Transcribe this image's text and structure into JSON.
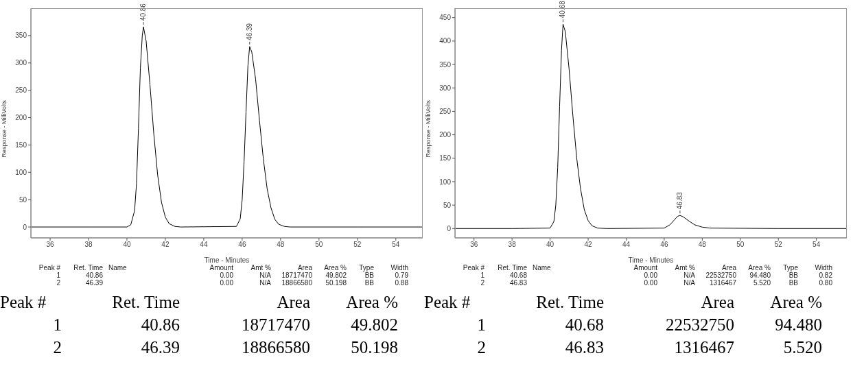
{
  "chart_data": [
    {
      "type": "line",
      "xlabel": "Time - Minutes",
      "ylabel": "Response - MilliVolts",
      "xlim": [
        35,
        55.4
      ],
      "ylim": [
        -20,
        400
      ],
      "xticks": [
        36,
        38,
        40,
        42,
        44,
        46,
        48,
        50,
        52,
        54
      ],
      "yticks": [
        0,
        50,
        100,
        150,
        200,
        250,
        300,
        350
      ],
      "grid": false,
      "marker": "none",
      "line_style": "solid",
      "series": [
        {
          "color": "#000000",
          "x": [
            35,
            38,
            40,
            40.2,
            40.4,
            40.5,
            40.6,
            40.7,
            40.8,
            40.86,
            41.0,
            41.2,
            41.4,
            41.6,
            41.8,
            42.0,
            42.2,
            42.5,
            42.8,
            45.7,
            45.9,
            46.0,
            46.1,
            46.2,
            46.3,
            46.39,
            46.5,
            46.7,
            46.9,
            47.1,
            47.3,
            47.5,
            47.7,
            47.9,
            48.2,
            48.5,
            52,
            55.4
          ],
          "values": [
            0,
            0,
            0,
            4,
            30,
            80,
            180,
            290,
            350,
            366,
            340,
            260,
            170,
            95,
            45,
            18,
            6,
            1,
            0,
            1,
            15,
            50,
            120,
            210,
            295,
            330,
            320,
            270,
            195,
            125,
            70,
            35,
            14,
            5,
            1,
            0,
            0,
            0
          ]
        }
      ],
      "annotations": [
        {
          "text": "40.86",
          "x": 40.86,
          "y": 366
        },
        {
          "text": "46.39",
          "x": 46.39,
          "y": 330
        },
        "Peak #\tRet. Time\tName\tAmount\tAmt %\tArea\tArea %\tType\tWidth",
        "1\t40.86\t\t0.00\tN/A\t18717470\t49.802\tBB\t0.79",
        "2\t46.39\t\t0.00\tN/A\t18866580\t50.198\tBB\t0.88",
        "Peak #\tRet. Time\tArea\tArea %",
        "1\t40.86\t18717470\t49.802",
        "2\t46.39\t18866580\t50.198"
      ]
    },
    {
      "type": "line",
      "xlabel": "Time - Minutes",
      "ylabel": "Response - MilliVolts",
      "xlim": [
        35,
        55.6
      ],
      "ylim": [
        -20,
        470
      ],
      "xticks": [
        36,
        38,
        40,
        42,
        44,
        46,
        48,
        50,
        52,
        54
      ],
      "yticks": [
        0,
        50,
        100,
        150,
        200,
        250,
        300,
        350,
        400,
        450
      ],
      "grid": false,
      "marker": "none",
      "line_style": "solid",
      "series": [
        {
          "color": "#000000",
          "x": [
            35,
            38,
            40.0,
            40.2,
            40.3,
            40.4,
            40.5,
            40.6,
            40.68,
            40.8,
            41.0,
            41.2,
            41.4,
            41.6,
            41.8,
            42.0,
            42.2,
            42.5,
            43,
            46.0,
            46.3,
            46.5,
            46.7,
            46.83,
            47.0,
            47.3,
            47.6,
            48.0,
            48.4,
            52,
            55.6
          ],
          "values": [
            0,
            0,
            1,
            15,
            50,
            130,
            260,
            380,
            436,
            420,
            340,
            240,
            150,
            85,
            40,
            17,
            6,
            1,
            0,
            1,
            8,
            17,
            26,
            28,
            25,
            16,
            8,
            3,
            1,
            0,
            0
          ]
        }
      ],
      "annotations": [
        {
          "text": "40.68",
          "x": 40.68,
          "y": 436
        },
        {
          "text": "46.83",
          "x": 46.83,
          "y": 28
        },
        "Peak #\tRet. Time\tName\tAmount\tAmt %\tArea\tArea %\tType\tWidth",
        "1\t40.68\t\t0.00\tN/A\t22532750\t94.480\tBB\t0.82",
        "2\t46.83\t\t0.00\tN/A\t1316467\t5.520\tBB\t0.80",
        "Peak #\tRet. Time\tArea\tArea %",
        "1\t40.68\t22532750\t94.480",
        "2\t46.83\t1316467\t5.520"
      ]
    }
  ]
}
